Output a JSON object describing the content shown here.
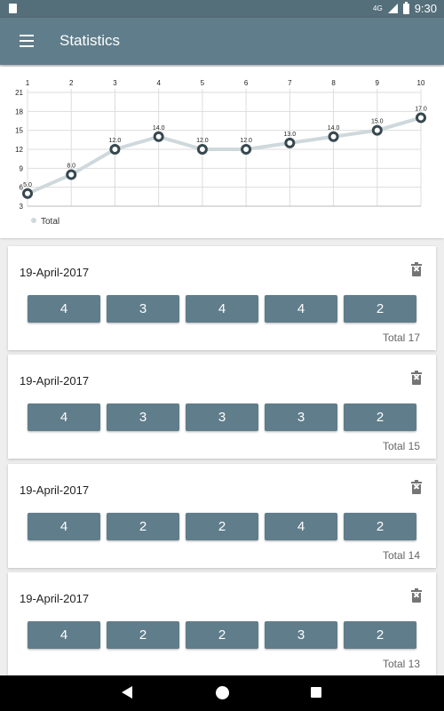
{
  "status_bar": {
    "network": "4G",
    "time": "9:30"
  },
  "app_bar": {
    "title": "Statistics",
    "menu_icon": "hamburger-menu-icon"
  },
  "chart_data": {
    "type": "line",
    "x": [
      1,
      2,
      3,
      4,
      5,
      6,
      7,
      8,
      9,
      10
    ],
    "series": [
      {
        "name": "Total",
        "values": [
          5.0,
          8.0,
          12.0,
          14.0,
          12.0,
          12.0,
          13.0,
          14.0,
          15.0,
          17.0
        ],
        "color": "#cfd8dc"
      }
    ],
    "y_ticks": [
      3,
      6,
      9,
      12,
      15,
      18,
      21
    ],
    "ylim": [
      3,
      21
    ],
    "x_tick_position": "top",
    "grid": true,
    "legend": "bottom-left",
    "point_labels": [
      "5.0",
      "8.0",
      "12.0",
      "14.0",
      "12.0",
      "12.0",
      "13.0",
      "14.0",
      "15.0",
      "17.0"
    ]
  },
  "sessions": [
    {
      "date": "19-April-2017",
      "scores": [
        "4",
        "3",
        "4",
        "4",
        "2"
      ],
      "total": "Total 17"
    },
    {
      "date": "19-April-2017",
      "scores": [
        "4",
        "3",
        "3",
        "3",
        "2"
      ],
      "total": "Total 15"
    },
    {
      "date": "19-April-2017",
      "scores": [
        "4",
        "2",
        "2",
        "4",
        "2"
      ],
      "total": "Total 14"
    },
    {
      "date": "19-April-2017",
      "scores": [
        "4",
        "2",
        "2",
        "3",
        "2"
      ],
      "total": "Total 13"
    }
  ],
  "colors": {
    "primary": "#607d8b",
    "primary_dark": "#546e7a",
    "line": "#cfd8dc",
    "point": "#37474f"
  }
}
